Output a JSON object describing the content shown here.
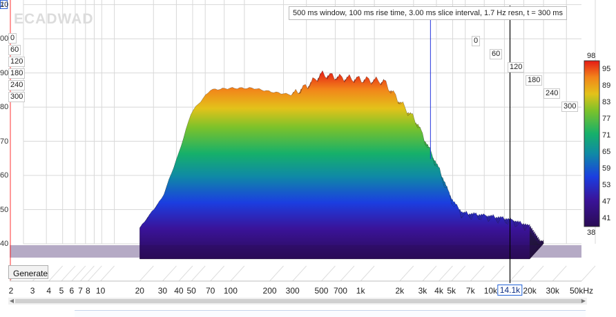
{
  "info_text": "500 ms window, 100 ms rise time, 3.00 ms slice interval, 1.7 Hz resn, t = 300 ms",
  "watermark": "ECADWAD",
  "corner_marker": "2",
  "generate_button": "Generate",
  "cursor_freq_label": "14.1k",
  "colors": {
    "cursor_red": "#ff3030",
    "cursor_blue": "#2233dd",
    "cursor_black": "#000000",
    "grid": "#d8d8d8"
  },
  "chart_data": {
    "type": "waterfall",
    "title": "",
    "x_axis": {
      "scale": "log",
      "range": [
        2,
        50000
      ],
      "tick_labels": [
        "2",
        "3",
        "4",
        "5",
        "6",
        "7",
        "8",
        "10",
        "20",
        "30",
        "40",
        "50",
        "70",
        "100",
        "200",
        "300",
        "500",
        "700",
        "1k",
        "2k",
        "3k",
        "4k",
        "5k",
        "7k",
        "10k",
        "14.1k",
        "20k",
        "30k",
        "50kHz"
      ]
    },
    "y_axis": {
      "labels": [
        "10",
        "00",
        "90",
        "80",
        "70",
        "60",
        "50",
        "40"
      ],
      "values": [
        110,
        100,
        90,
        80,
        70,
        60,
        50,
        40
      ]
    },
    "time_axis": {
      "unit": "ms",
      "labels": [
        "0",
        "60",
        "120",
        "180",
        "240",
        "300"
      ],
      "values": [
        0,
        60,
        120,
        180,
        240,
        300
      ]
    },
    "colorbar": {
      "labels": [
        "98",
        "95",
        "89",
        "83",
        "77",
        "71",
        "65",
        "59",
        "53",
        "47",
        "41",
        "38"
      ],
      "values": [
        98,
        95,
        89,
        83,
        77,
        71,
        65,
        59,
        53,
        47,
        41,
        38
      ]
    },
    "cursors": {
      "red_hz": 2,
      "blue_hz": 2700,
      "black_hz": 14100
    },
    "front_spectrum": {
      "freq_hz": [
        20,
        30,
        40,
        50,
        70,
        100,
        150,
        200,
        300,
        400,
        500,
        700,
        1000,
        1500,
        2000,
        2700,
        3000,
        4000,
        5000,
        6000,
        10000,
        14100,
        20000
      ],
      "level_db": [
        49,
        58,
        71,
        83,
        89.5,
        90,
        90,
        89,
        88,
        91,
        94,
        93,
        92.5,
        92,
        86,
        80,
        76,
        66,
        57,
        53,
        52,
        51,
        49
      ]
    }
  }
}
